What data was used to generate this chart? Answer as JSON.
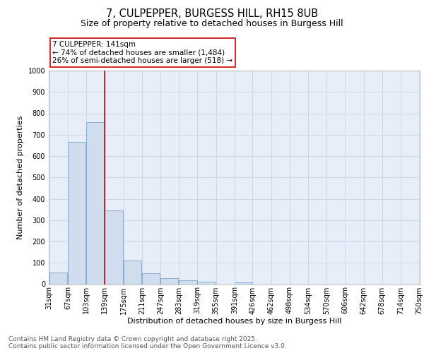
{
  "title": "7, CULPEPPER, BURGESS HILL, RH15 8UB",
  "subtitle": "Size of property relative to detached houses in Burgess Hill",
  "xlabel": "Distribution of detached houses by size in Burgess Hill",
  "ylabel": "Number of detached properties",
  "bins": [
    31,
    67,
    103,
    139,
    175,
    211,
    247,
    283,
    319,
    355,
    391,
    426,
    462,
    498,
    534,
    570,
    606,
    642,
    678,
    714,
    750
  ],
  "bar_heights": [
    55,
    665,
    760,
    345,
    110,
    50,
    27,
    18,
    10,
    0,
    8,
    0,
    0,
    0,
    0,
    0,
    0,
    0,
    0,
    0
  ],
  "bar_color": "#cfdded",
  "bar_edgecolor": "#6699cc",
  "grid_color": "#ccd6e8",
  "property_line_x": 139,
  "property_line_color": "#cc0000",
  "annotation_text": "7 CULPEPPER: 141sqm\n← 74% of detached houses are smaller (1,484)\n26% of semi-detached houses are larger (518) →",
  "annotation_box_edgecolor": "#cc0000",
  "ylim_max": 1000,
  "yticks": [
    0,
    100,
    200,
    300,
    400,
    500,
    600,
    700,
    800,
    900,
    1000
  ],
  "plot_bg_color": "#e8eef8",
  "fig_bg_color": "#ffffff",
  "footer_text": "Contains HM Land Registry data © Crown copyright and database right 2025.\nContains public sector information licensed under the Open Government Licence v3.0.",
  "title_fontsize": 10.5,
  "subtitle_fontsize": 9,
  "axis_label_fontsize": 8,
  "tick_fontsize": 7,
  "annotation_fontsize": 7.5,
  "footer_fontsize": 6.5
}
